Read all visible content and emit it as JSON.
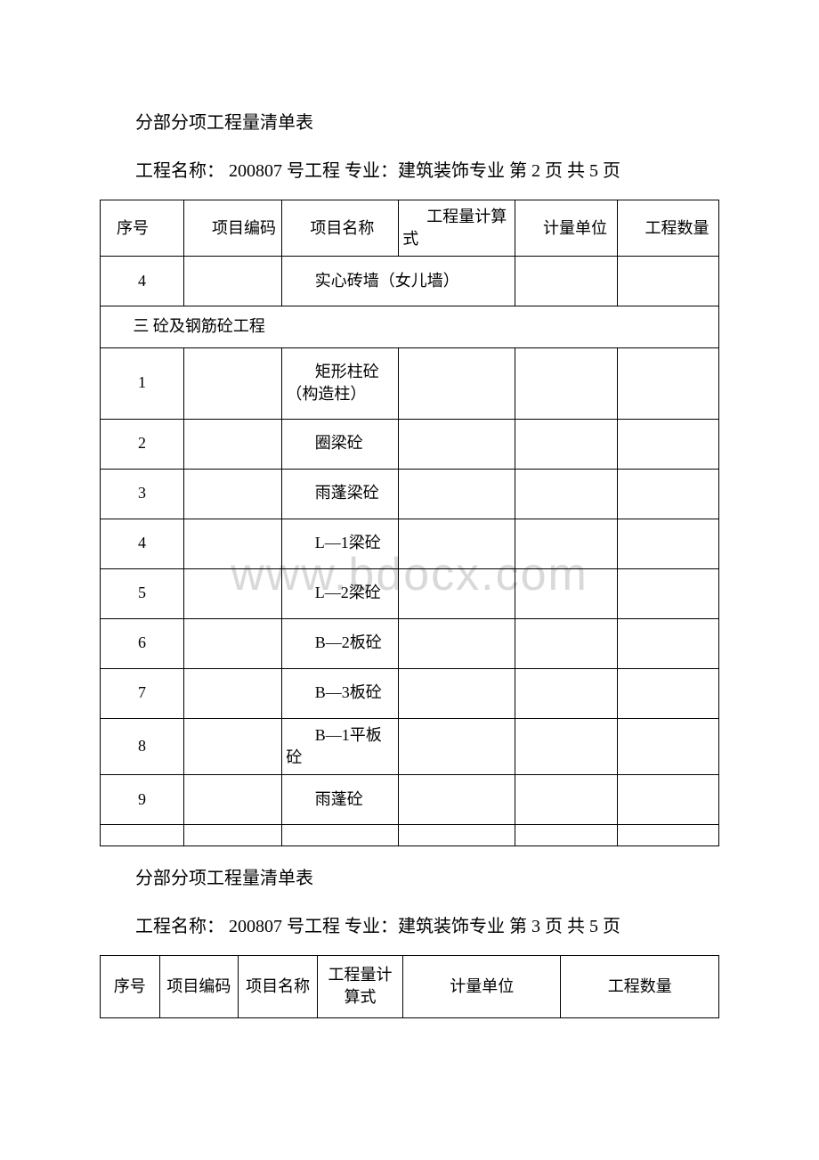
{
  "watermark": "www.bdocx.com",
  "page2": {
    "title": "分部分项工程量清单表",
    "subtitle": "工程名称： 200807 号工程 专业：建筑装饰专业 第 2 页 共 5 页",
    "headers": {
      "seq": "序号",
      "code": "项目编码",
      "name": "项目名称",
      "formula": "工程量计算式",
      "unit": "计量单位",
      "qty": "工程数量"
    },
    "rows": [
      {
        "seq": "4",
        "name": "实心砖墙（女儿墙）",
        "merge_name_formula": true
      },
      {
        "section": "三 砼及钢筋砼工程"
      },
      {
        "seq": "1",
        "name": "矩形柱砼（构造柱）",
        "tall": true
      },
      {
        "seq": "2",
        "name": "圈梁砼"
      },
      {
        "seq": "3",
        "name": "雨蓬梁砼"
      },
      {
        "seq": "4",
        "name": "L—1梁砼"
      },
      {
        "seq": "5",
        "name": "L—2梁砼"
      },
      {
        "seq": "6",
        "name": "B—2板砼"
      },
      {
        "seq": "7",
        "name": "B—3板砼"
      },
      {
        "seq": "8",
        "name": "B—1平板砼"
      },
      {
        "seq": "9",
        "name": "雨蓬砼"
      },
      {
        "empty": true
      }
    ]
  },
  "page3": {
    "title": "分部分项工程量清单表",
    "subtitle": "工程名称： 200807 号工程 专业：建筑装饰专业  第 3 页 共 5 页",
    "headers": {
      "seq": "序号",
      "code": "项目编码",
      "name": "项目名称",
      "formula": "工程量计算式",
      "unit": "计量单位",
      "qty": "工程数量"
    }
  }
}
